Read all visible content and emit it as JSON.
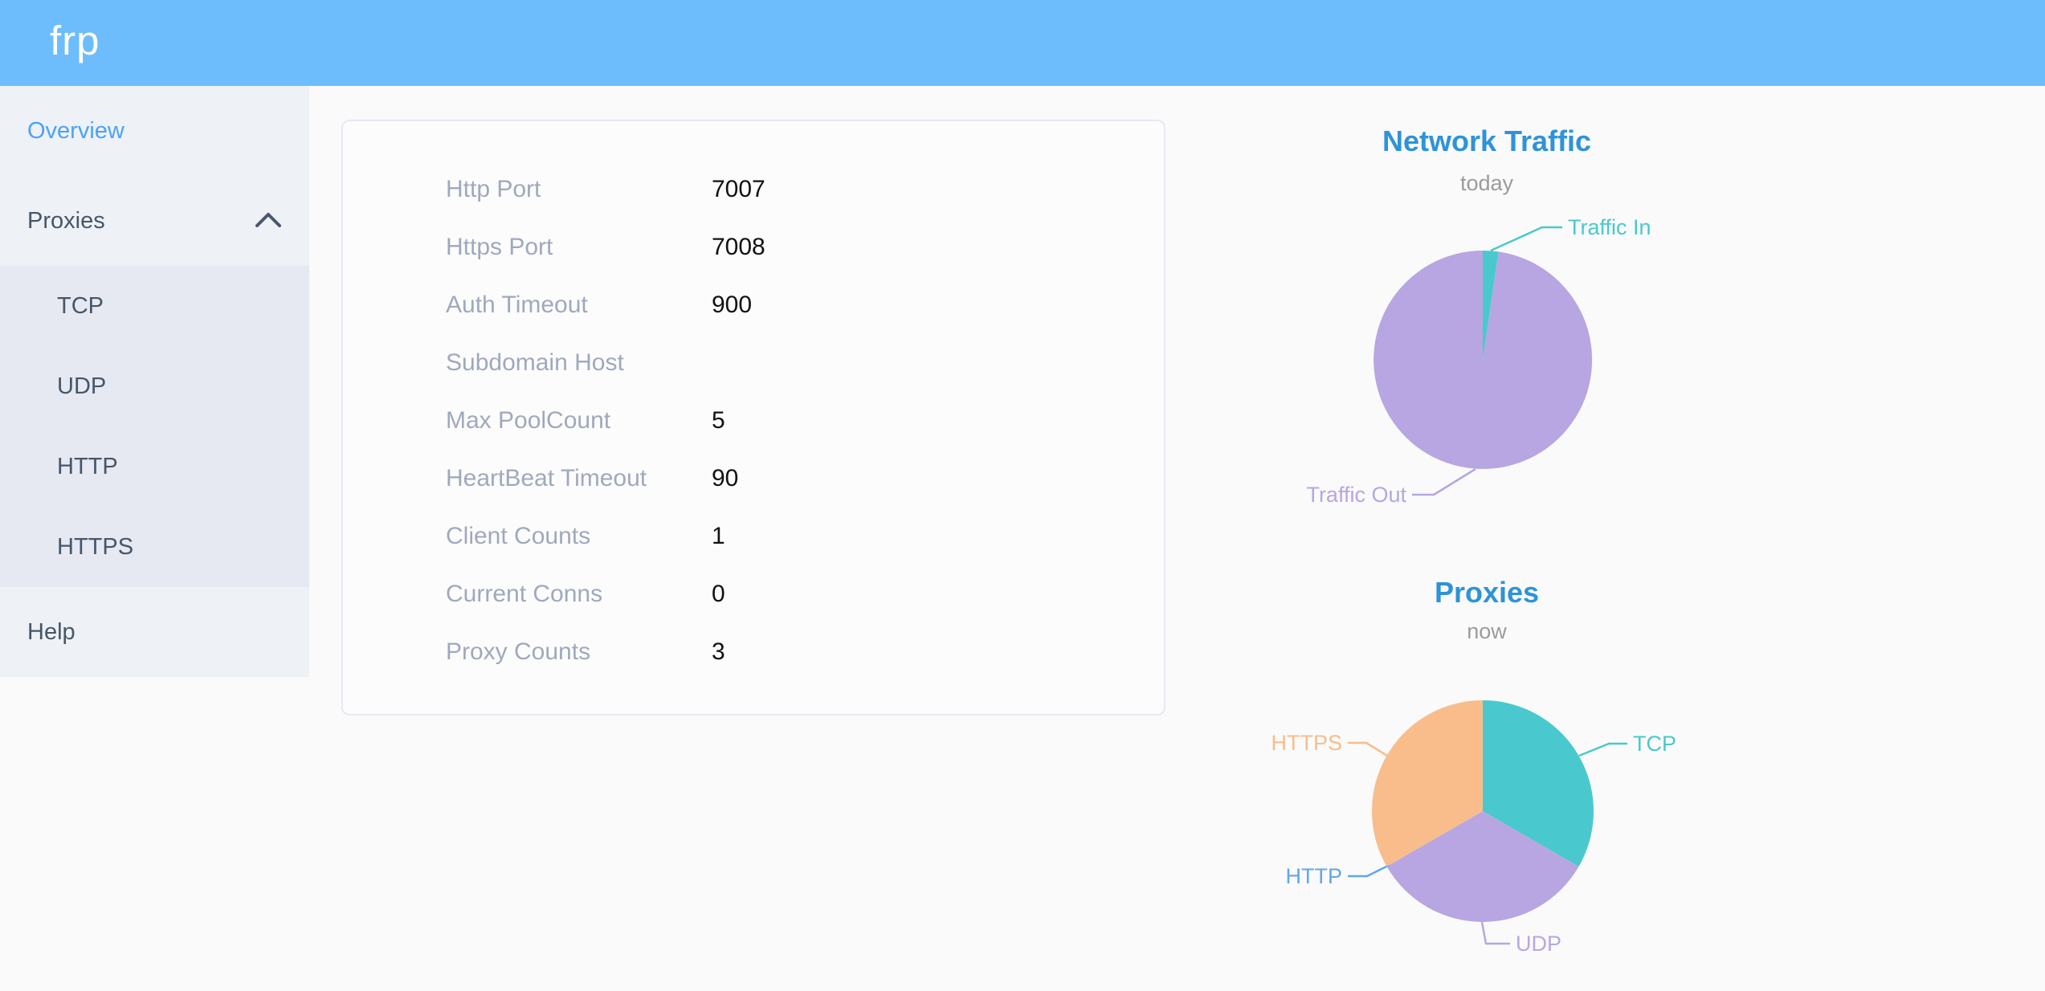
{
  "header": {
    "logo_text": "frp"
  },
  "theme": {
    "header_bg": "#6dbdfc",
    "sidebar_bg": "#eef1f6",
    "submenu_bg": "#e6e9f1",
    "active_link_blue": "#4aa3f9",
    "menu_text": "#475669",
    "chart_title_blue": "#2e93d8",
    "chart_subtitle_gray": "#9b9b9b",
    "card_label_gray": "#9fa9bc",
    "card_value_black": "#121212",
    "pie_teal": "#49c9cd",
    "pie_purple": "#b7a6e2",
    "pie_orange": "#f8bd8b",
    "pie_blue": "#5fa8e8"
  },
  "sidebar": {
    "overview_label": "Overview",
    "proxies_label": "Proxies",
    "proxies_children": [
      "TCP",
      "UDP",
      "HTTP",
      "HTTPS"
    ],
    "help_label": "Help"
  },
  "overview_card": {
    "rows": [
      {
        "label": "Http Port",
        "value": "7007"
      },
      {
        "label": "Https Port",
        "value": "7008"
      },
      {
        "label": "Auth Timeout",
        "value": "900"
      },
      {
        "label": "Subdomain Host",
        "value": ""
      },
      {
        "label": "Max PoolCount",
        "value": "5"
      },
      {
        "label": "HeartBeat Timeout",
        "value": "90"
      },
      {
        "label": "Client Counts",
        "value": "1"
      },
      {
        "label": "Current Conns",
        "value": "0"
      },
      {
        "label": "Proxy Counts",
        "value": "3"
      }
    ]
  },
  "chart_data": [
    {
      "type": "pie",
      "title": "Network Traffic",
      "subtitle": "today",
      "legend_position": "none",
      "label_style": "outside-leader-lines",
      "slices": [
        {
          "label": "Traffic In",
          "value": 2.3,
          "unit": "pct-estimated",
          "color": "#49c9cd"
        },
        {
          "label": "Traffic Out",
          "value": 97.7,
          "unit": "pct-estimated",
          "color": "#b7a6e2"
        }
      ]
    },
    {
      "type": "pie",
      "title": "Proxies",
      "subtitle": "now",
      "legend_position": "none",
      "label_style": "outside-leader-lines",
      "slices": [
        {
          "label": "TCP",
          "value": 1,
          "color": "#49c9cd"
        },
        {
          "label": "UDP",
          "value": 1,
          "color": "#b7a6e2"
        },
        {
          "label": "HTTP",
          "value": 0,
          "color": "#5fa8e8"
        },
        {
          "label": "HTTPS",
          "value": 1,
          "color": "#f8bd8b"
        }
      ]
    }
  ]
}
